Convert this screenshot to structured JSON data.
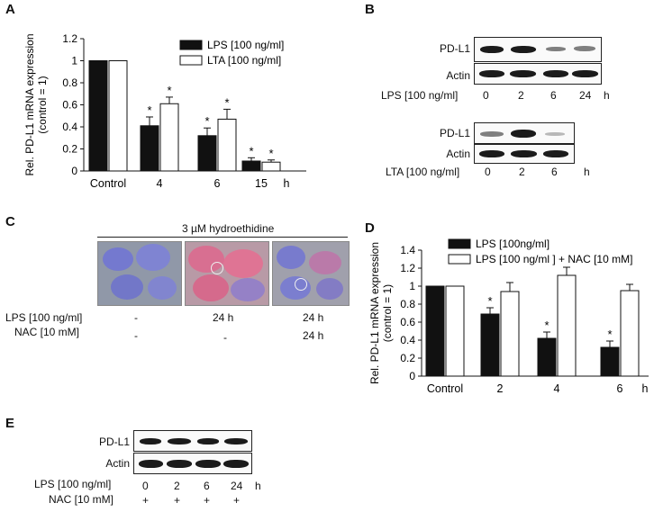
{
  "panels": {
    "a": "A",
    "b": "B",
    "c": "C",
    "d": "D",
    "e": "E"
  },
  "chart_data": [
    {
      "type": "bar",
      "panel": "A",
      "ylabel": "Rel. PD-L1 mRNA expression (control = 1)",
      "ylabel_line1": "Rel. PD-L1 mRNA expression",
      "ylabel_line2": "(control = 1)",
      "xlabel": "h",
      "categories": [
        "Control",
        "4",
        "6",
        "15"
      ],
      "ylim": [
        0,
        1.2
      ],
      "yticks": [
        "0",
        "0.2",
        "0.4",
        "0.6",
        "0.8",
        "1",
        "1.2"
      ],
      "series": [
        {
          "name": "LPS [100 ng/ml]",
          "color": "#111111",
          "values": [
            1.0,
            0.41,
            0.32,
            0.09
          ],
          "errors": [
            0,
            0.08,
            0.07,
            0.03
          ],
          "significance": [
            "",
            "*",
            "*",
            "*"
          ]
        },
        {
          "name": "LTA [100 ng/ml]",
          "color": "#ffffff",
          "values": [
            1.0,
            0.61,
            0.47,
            0.08
          ],
          "errors": [
            0,
            0.06,
            0.09,
            0.02
          ],
          "significance": [
            "",
            "*",
            "*",
            "*"
          ]
        }
      ]
    },
    {
      "type": "bar",
      "panel": "D",
      "ylabel": "Rel. PD-L1 mRNA expression (control = 1)",
      "ylabel_line1": "Rel. PD-L1 mRNA expression",
      "ylabel_line2": "(control = 1)",
      "xlabel": "h",
      "categories": [
        "Control",
        "2",
        "4",
        "6"
      ],
      "ylim": [
        0,
        1.4
      ],
      "yticks": [
        "0",
        "0.2",
        "0.4",
        "0.6",
        "0.8",
        "1",
        "1.2",
        "1.4"
      ],
      "series": [
        {
          "name": "LPS [100ng/ml]",
          "color": "#111111",
          "values": [
            1.0,
            0.69,
            0.42,
            0.32
          ],
          "errors": [
            0,
            0.07,
            0.07,
            0.07
          ],
          "significance": [
            "",
            "*",
            "*",
            "*"
          ]
        },
        {
          "name": "LPS [100 ng/ml ] + NAC [10 mM]",
          "color": "#ffffff",
          "values": [
            1.0,
            0.94,
            1.12,
            0.95
          ],
          "errors": [
            0,
            0.1,
            0.09,
            0.07
          ],
          "significance": [
            "",
            "",
            "",
            ""
          ]
        }
      ]
    }
  ],
  "blotB": {
    "pdl1": "PD-L1",
    "actin": "Actin",
    "lps_label": "LPS [100 ng/ml]",
    "lps_times": [
      "0",
      "2",
      "6",
      "24"
    ],
    "lta_label": "LTA [100 ng/ml]",
    "lta_times": [
      "0",
      "2",
      "6"
    ],
    "unit": "h"
  },
  "panelC": {
    "title": "3 µM hydroethidine",
    "lps_label": "LPS [100 ng/ml]",
    "nac_label": "NAC [10 mM]",
    "lps_values": [
      "-",
      "24 h",
      "24 h"
    ],
    "nac_values": [
      "-",
      "-",
      "24 h"
    ]
  },
  "blotE": {
    "pdl1": "PD-L1",
    "actin": "Actin",
    "lps_label": "LPS [100 ng/ml]",
    "nac_label": "NAC [10 mM]",
    "times": [
      "0",
      "2",
      "6",
      "24"
    ],
    "unit": "h",
    "nac_marks": [
      "+",
      "+",
      "+",
      "+"
    ]
  }
}
